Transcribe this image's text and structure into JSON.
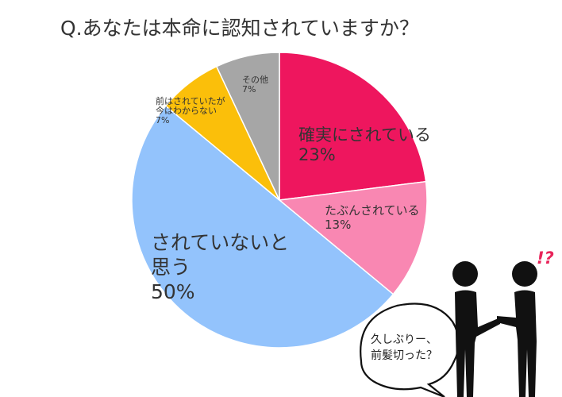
{
  "title": "Q.あなたは本命に認知されていますか？",
  "chart_data": {
    "type": "pie",
    "title": "Q.あなたは本命に認知されていますか？",
    "slices": [
      {
        "label": "確実にされている",
        "value": 23,
        "value_label": "23%",
        "color": "#ee165e"
      },
      {
        "label": "たぶんされている",
        "value": 13,
        "value_label": "13%",
        "color": "#f987b2"
      },
      {
        "label": "されていないと思う",
        "value": 50,
        "value_label": "50%",
        "color": "#93c3fc"
      },
      {
        "label": "前はされていたが今はわからない",
        "value": 7,
        "value_label": "7%",
        "color": "#fbbf0a"
      },
      {
        "label": "その他",
        "value": 7,
        "value_label": "7%",
        "color": "#a6a6a6"
      }
    ]
  },
  "labels": {
    "s0_line1": "確実にされている",
    "s0_pct": "23%",
    "s1_line1": "たぶんされている",
    "s1_pct": "13%",
    "s2_line1": "されていないと",
    "s2_line2": "思う",
    "s2_pct": "50%",
    "s3_line1": "前はされていたが",
    "s3_line2": "今はわからない",
    "s3_pct": "7%",
    "s4_line1": "その他",
    "s4_pct": "7%"
  },
  "speech_bubble": {
    "line1": "久しぶりー、",
    "line2": "前髪切った？"
  },
  "exclamation": "!?"
}
